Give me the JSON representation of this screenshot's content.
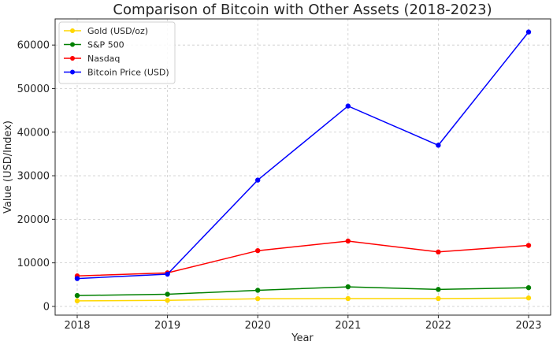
{
  "chart_data": {
    "type": "line",
    "title": "Comparison of Bitcoin with Other Assets (2018-2023)",
    "xlabel": "Year",
    "ylabel": "Value (USD/Index)",
    "x": [
      "2018",
      "2019",
      "2020",
      "2021",
      "2022",
      "2023"
    ],
    "ylim": [
      -2000,
      66000
    ],
    "yticks": [
      0,
      10000,
      20000,
      30000,
      40000,
      50000,
      60000
    ],
    "grid": true,
    "legend_position": "top-left",
    "series": [
      {
        "name": "Gold (USD/oz)",
        "color": "#FFD700",
        "values": [
          1270,
          1390,
          1770,
          1800,
          1800,
          1940
        ]
      },
      {
        "name": "S&P 500",
        "color": "#008000",
        "values": [
          2500,
          2800,
          3700,
          4500,
          3900,
          4300
        ]
      },
      {
        "name": "Nasdaq",
        "color": "#FF0000",
        "values": [
          7000,
          7700,
          12800,
          15000,
          12500,
          14000
        ]
      },
      {
        "name": "Bitcoin Price (USD)",
        "color": "#0000FF",
        "values": [
          6400,
          7400,
          29000,
          46000,
          37000,
          63000
        ]
      }
    ]
  }
}
